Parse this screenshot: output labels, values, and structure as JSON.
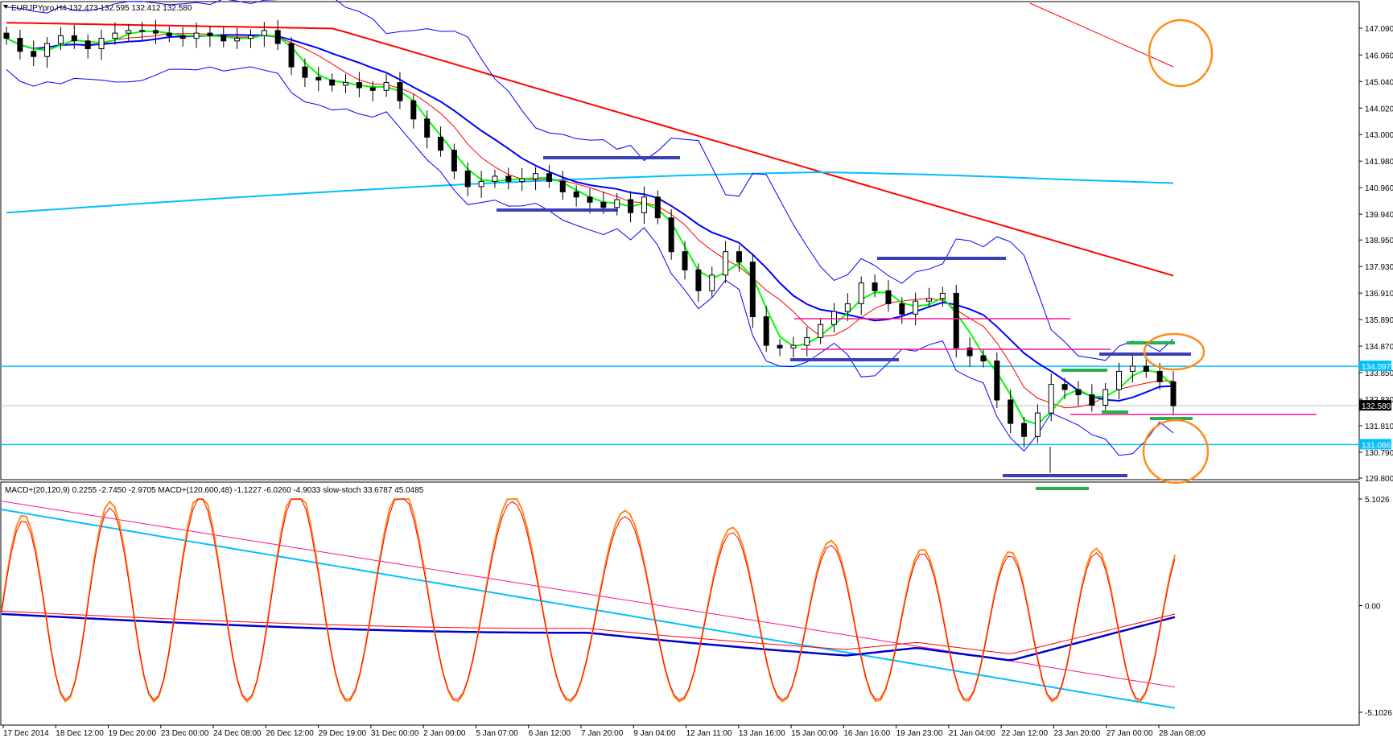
{
  "chart_data": {
    "type": "candlestick",
    "symbol_header": "EURJPYpro,H4  132.473 132.595 132.412 132.580",
    "price_axis": {
      "ticks": [
        "147.090",
        "146.060",
        "145.040",
        "144.020",
        "143.000",
        "141.980",
        "140.960",
        "139.940",
        "138.950",
        "137.930",
        "136.910",
        "135.890",
        "134.870",
        "133.850",
        "132.830",
        "131.810",
        "130.790",
        "129.800"
      ],
      "range": [
        129.5,
        147.6
      ]
    },
    "price_tags": [
      {
        "value": "134.097",
        "color": "#00bfff"
      },
      {
        "value": "132.580",
        "color": "#000000"
      },
      {
        "value": "131.086",
        "color": "#00bfff"
      }
    ],
    "time_labels": [
      "17 Dec 2014",
      "18 Dec 12:00",
      "19 Dec 20:00",
      "23 Dec 00:00",
      "24 Dec 08:00",
      "26 Dec 12:00",
      "29 Dec 19:00",
      "31 Dec 00:00",
      "2 Jan 00:00",
      "5 Jan 07:00",
      "6 Jan 12:00",
      "7 Jan 20:00",
      "9 Jan 04:00",
      "12 Jan 11:00",
      "13 Jan 16:00",
      "15 Jan 00:00",
      "16 Jan 16:00",
      "19 Jan 23:00",
      "21 Jan 04:00",
      "22 Jan 12:00",
      "23 Jan 20:00",
      "27 Jan 00:00",
      "28 Jan 08:00"
    ],
    "horizontal_lines": [
      134.097,
      131.086,
      132.58
    ],
    "indicator_header": "MACD+(20,120,9) 0.2255 -2.7450 -2.9705  MACD+(120,600,48) -1.1227 -6.0260 -4.9033  slow-stoch 33.6787 45.0485",
    "indicator_axis": {
      "ticks": [
        "5.1026",
        "0.00",
        "-5.1026"
      ],
      "range": [
        -5.6,
        5.4
      ]
    },
    "candle_path": [
      146.7,
      146.2,
      146.0,
      146.5,
      146.8,
      146.6,
      146.3,
      146.7,
      146.9,
      147.0,
      147.0,
      146.9,
      146.8,
      146.7,
      146.9,
      146.8,
      146.6,
      146.7,
      146.8,
      147.0,
      146.5,
      145.6,
      145.2,
      145.1,
      144.9,
      145.0,
      144.8,
      144.7,
      145.0,
      144.3,
      143.6,
      142.9,
      142.4,
      141.6,
      141.0,
      141.2,
      141.4,
      141.2,
      141.3,
      141.5,
      141.2,
      140.8,
      140.6,
      140.4,
      140.2,
      140.5,
      140.0,
      140.6,
      139.8,
      138.5,
      137.8,
      137.0,
      137.6,
      138.5,
      138.1,
      136.0,
      134.9,
      134.8,
      134.9,
      135.2,
      135.7,
      136.2,
      136.5,
      137.3,
      137.0,
      136.5,
      136.1,
      136.6,
      136.7,
      136.9,
      134.8,
      134.5,
      134.3,
      132.8,
      131.9,
      131.4,
      132.3,
      133.4,
      133.2,
      133.0,
      132.6,
      133.2,
      133.9,
      134.1,
      133.9,
      133.5,
      132.58
    ],
    "legend": []
  }
}
